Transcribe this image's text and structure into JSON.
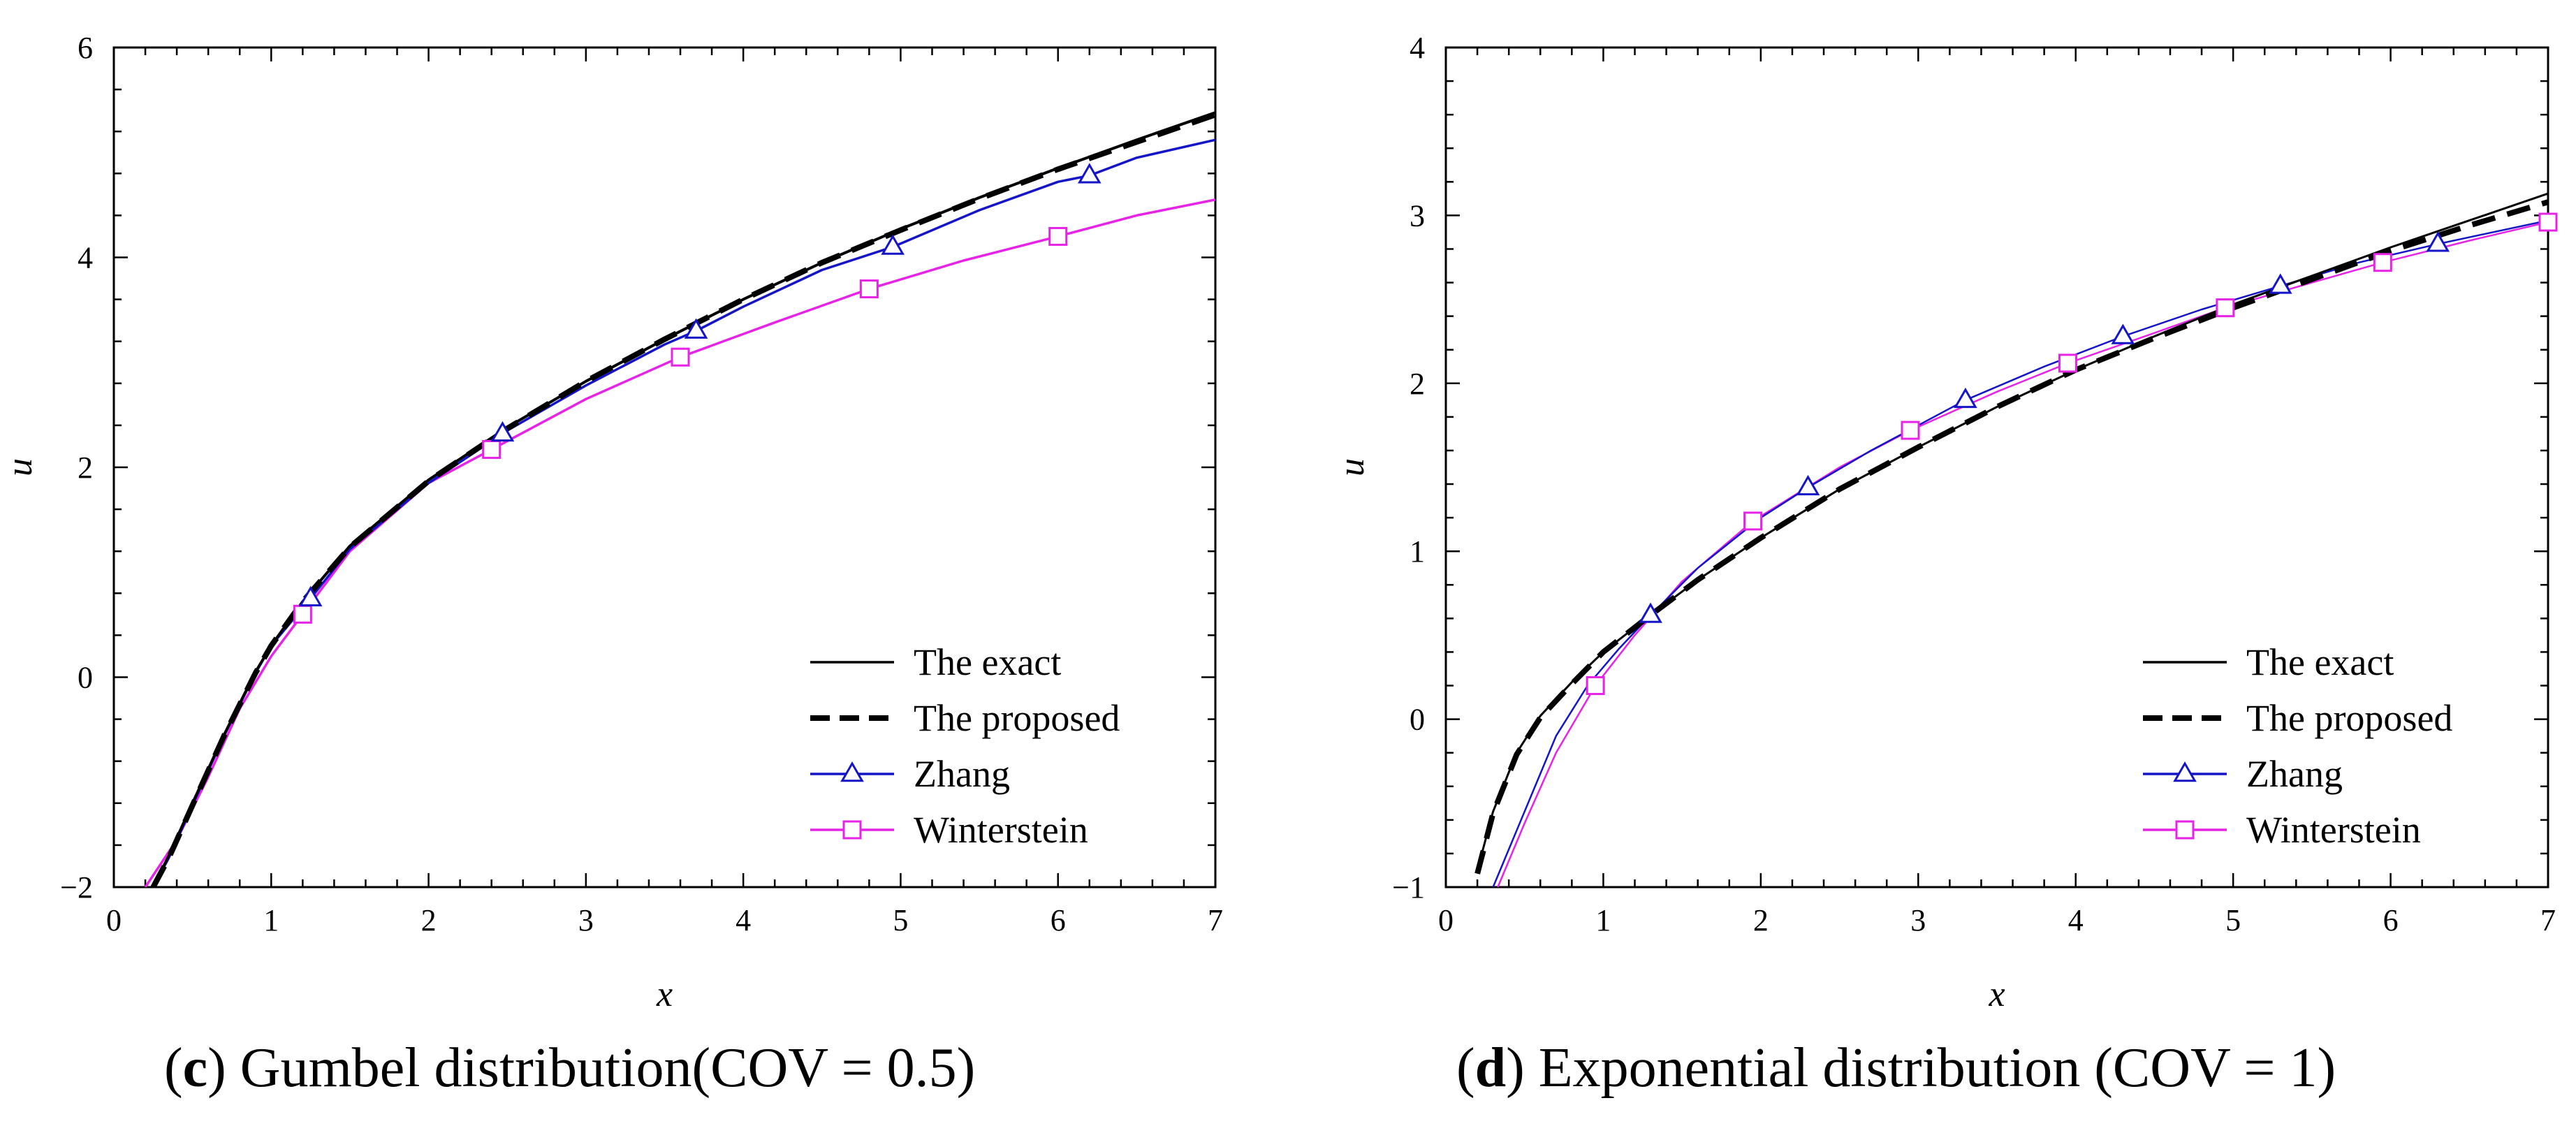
{
  "chart_data": [
    {
      "type": "line",
      "panel_letter": "c",
      "title": " Gumbel distribution(COV = 0.5)",
      "xlabel": "x",
      "ylabel": "u",
      "xlim": [
        0,
        7
      ],
      "ylim": [
        -2,
        6
      ],
      "xticks": [
        0,
        1,
        2,
        3,
        4,
        5,
        6,
        7
      ],
      "yticks": [
        -2,
        0,
        2,
        4,
        6
      ],
      "ytick_labels": [
        "−2",
        "0",
        "2",
        "4",
        "6"
      ],
      "legend_position": "bottom-right",
      "series": [
        {
          "name": "The exact",
          "style": "solid",
          "color": "#000000",
          "x": [
            0.25,
            0.35,
            0.5,
            0.7,
            0.9,
            1.0,
            1.2,
            1.5,
            2.0,
            2.5,
            3.0,
            3.5,
            4.0,
            4.5,
            5.0,
            5.5,
            6.0,
            6.5,
            7.0
          ],
          "y": [
            -2.0,
            -1.7,
            -1.2,
            -0.55,
            0.05,
            0.3,
            0.72,
            1.25,
            1.88,
            2.38,
            2.82,
            3.22,
            3.6,
            3.95,
            4.27,
            4.57,
            4.85,
            5.12,
            5.38
          ]
        },
        {
          "name": "The proposed",
          "style": "dashed",
          "color": "#000000",
          "x": [
            0.25,
            0.35,
            0.5,
            0.7,
            0.9,
            1.0,
            1.2,
            1.5,
            2.0,
            2.5,
            3.0,
            3.5,
            4.0,
            4.5,
            5.0,
            5.5,
            6.0,
            6.5,
            7.0
          ],
          "y": [
            -2.0,
            -1.72,
            -1.22,
            -0.56,
            0.04,
            0.3,
            0.72,
            1.24,
            1.87,
            2.37,
            2.82,
            3.22,
            3.6,
            3.95,
            4.26,
            4.56,
            4.84,
            5.1,
            5.36
          ]
        },
        {
          "name": "Zhang",
          "style": "solid-triangle",
          "color": "#1515c8",
          "x": [
            0.25,
            0.35,
            0.5,
            0.7,
            0.9,
            1.0,
            1.25,
            1.5,
            2.0,
            2.5,
            3.0,
            3.5,
            3.7,
            4.0,
            4.5,
            4.95,
            5.5,
            6.0,
            6.2,
            6.5,
            7.0
          ],
          "y": [
            -2.0,
            -1.72,
            -1.22,
            -0.56,
            0.04,
            0.3,
            0.75,
            1.22,
            1.85,
            2.35,
            2.78,
            3.17,
            3.3,
            3.53,
            3.88,
            4.1,
            4.45,
            4.72,
            4.78,
            4.95,
            5.12
          ],
          "markers_x": [
            1.25,
            2.47,
            3.7,
            4.95,
            6.2
          ]
        },
        {
          "name": "Winterstein",
          "style": "solid-square",
          "color": "#e623e6",
          "x": [
            0.2,
            0.4,
            0.6,
            0.8,
            1.0,
            1.2,
            1.5,
            2.0,
            2.4,
            3.0,
            3.6,
            4.2,
            4.8,
            5.4,
            6.0,
            6.5,
            7.0
          ],
          "y": [
            -2.0,
            -1.55,
            -0.95,
            -0.3,
            0.2,
            0.6,
            1.2,
            1.85,
            2.17,
            2.65,
            3.05,
            3.38,
            3.7,
            3.97,
            4.2,
            4.4,
            4.55
          ],
          "markers_x": [
            1.2,
            2.4,
            3.6,
            4.8,
            6.0
          ]
        }
      ]
    },
    {
      "type": "line",
      "panel_letter": "d",
      "title": " Exponential distribution (COV = 1)",
      "xlabel": "x",
      "ylabel": "u",
      "xlim": [
        0,
        7
      ],
      "ylim": [
        -1,
        4
      ],
      "xticks": [
        0,
        1,
        2,
        3,
        4,
        5,
        6,
        7
      ],
      "yticks": [
        -1,
        0,
        1,
        2,
        3,
        4
      ],
      "ytick_labels": [
        "−1",
        "0",
        "1",
        "2",
        "3",
        "4"
      ],
      "legend_position": "bottom-right",
      "series": [
        {
          "name": "The exact",
          "style": "solid",
          "color": "#000000",
          "x": [
            0.2,
            0.3,
            0.45,
            0.6,
            0.8,
            1.0,
            1.3,
            1.6,
            2.0,
            2.5,
            3.0,
            3.5,
            4.0,
            4.5,
            5.0,
            5.5,
            6.0,
            6.5,
            7.0
          ],
          "y": [
            -0.9,
            -0.55,
            -0.2,
            0.02,
            0.22,
            0.4,
            0.62,
            0.83,
            1.08,
            1.37,
            1.62,
            1.86,
            2.08,
            2.28,
            2.47,
            2.64,
            2.81,
            2.97,
            3.13
          ]
        },
        {
          "name": "The proposed",
          "style": "dashed",
          "color": "#000000",
          "x": [
            0.2,
            0.3,
            0.45,
            0.6,
            0.8,
            1.0,
            1.3,
            1.6,
            2.0,
            2.5,
            3.0,
            3.5,
            4.0,
            4.5,
            5.0,
            5.5,
            6.0,
            6.5,
            7.0
          ],
          "y": [
            -0.92,
            -0.56,
            -0.21,
            0.01,
            0.21,
            0.4,
            0.62,
            0.83,
            1.08,
            1.37,
            1.62,
            1.86,
            2.08,
            2.27,
            2.45,
            2.62,
            2.79,
            2.94,
            3.08
          ]
        },
        {
          "name": "Zhang",
          "style": "solid-triangle",
          "color": "#1515c8",
          "x": [
            0.3,
            0.5,
            0.7,
            0.9,
            1.1,
            1.3,
            1.6,
            2.0,
            2.3,
            2.7,
            3.3,
            3.8,
            4.3,
            4.8,
            5.3,
            5.8,
            6.3,
            7.0
          ],
          "y": [
            -1.0,
            -0.55,
            -0.1,
            0.2,
            0.42,
            0.62,
            0.9,
            1.2,
            1.38,
            1.6,
            1.9,
            2.1,
            2.28,
            2.44,
            2.58,
            2.72,
            2.83,
            2.97
          ],
          "markers_x": [
            1.3,
            2.3,
            3.3,
            4.3,
            5.3,
            6.3
          ]
        },
        {
          "name": "Winterstein",
          "style": "solid-square",
          "color": "#e623e6",
          "x": [
            0.33,
            0.5,
            0.7,
            0.95,
            1.2,
            1.5,
            1.95,
            2.5,
            2.95,
            3.5,
            3.95,
            4.5,
            4.95,
            5.5,
            5.95,
            6.5,
            7.0
          ],
          "y": [
            -1.0,
            -0.62,
            -0.2,
            0.2,
            0.5,
            0.82,
            1.18,
            1.5,
            1.72,
            1.95,
            2.12,
            2.3,
            2.45,
            2.6,
            2.72,
            2.85,
            2.96
          ],
          "markers_x": [
            0.95,
            1.95,
            2.95,
            3.95,
            4.95,
            5.95,
            7.0
          ]
        }
      ]
    }
  ]
}
